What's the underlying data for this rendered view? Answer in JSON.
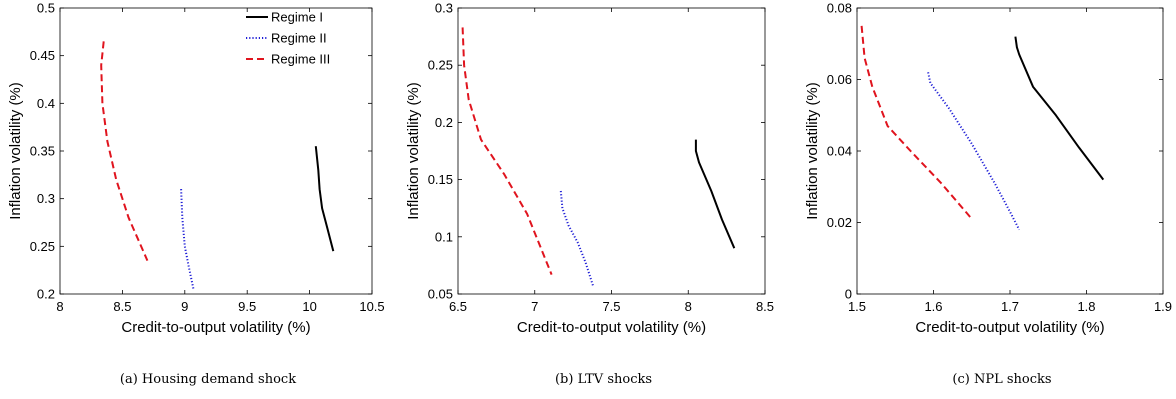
{
  "chart_data": [
    {
      "type": "line",
      "caption": "(a) Housing demand shock",
      "xlabel": "Credit-to-output volatility (%)",
      "ylabel": "Inflation volatility (%)",
      "xlim": [
        8,
        10.5
      ],
      "ylim": [
        0.2,
        0.5
      ],
      "xticks": [
        8,
        8.5,
        9,
        9.5,
        10,
        10.5
      ],
      "yticks": [
        0.2,
        0.25,
        0.3,
        0.35,
        0.4,
        0.45,
        0.5
      ],
      "xtick_labels": [
        "8",
        "8.5",
        "9",
        "9.5",
        "10",
        "10.5"
      ],
      "ytick_labels": [
        "0.2",
        "0.25",
        "0.3",
        "0.35",
        "0.4",
        "0.45",
        "0.5"
      ],
      "legend": {
        "position": "top-right",
        "entries": [
          "Regime I",
          "Regime II",
          "Regime III"
        ]
      },
      "series": [
        {
          "name": "Regime I",
          "color": "#000000",
          "style": "solid",
          "x": [
            10.05,
            10.07,
            10.08,
            10.1,
            10.14,
            10.19
          ],
          "y": [
            0.355,
            0.33,
            0.31,
            0.29,
            0.27,
            0.245
          ]
        },
        {
          "name": "Regime II",
          "color": "#1f1fd6",
          "style": "dotted",
          "x": [
            8.97,
            8.98,
            9.0,
            9.03,
            9.07
          ],
          "y": [
            0.31,
            0.28,
            0.25,
            0.23,
            0.205
          ]
        },
        {
          "name": "Regime III",
          "color": "#e0141e",
          "style": "dashed",
          "x": [
            8.35,
            8.33,
            8.34,
            8.38,
            8.45,
            8.55,
            8.7
          ],
          "y": [
            0.465,
            0.44,
            0.4,
            0.36,
            0.32,
            0.28,
            0.235
          ]
        }
      ]
    },
    {
      "type": "line",
      "caption": "(b) LTV shocks",
      "xlabel": "Credit-to-output volatility (%)",
      "ylabel": "Inflation volatility (%)",
      "xlim": [
        6.5,
        8.5
      ],
      "ylim": [
        0.05,
        0.3
      ],
      "xticks": [
        6.5,
        7,
        7.5,
        8,
        8.5
      ],
      "yticks": [
        0.05,
        0.1,
        0.15,
        0.2,
        0.25,
        0.3
      ],
      "xtick_labels": [
        "6.5",
        "7",
        "7.5",
        "8",
        "8.5"
      ],
      "ytick_labels": [
        "0.05",
        "0.1",
        "0.15",
        "0.2",
        "0.25",
        "0.3"
      ],
      "series": [
        {
          "name": "Regime I",
          "color": "#000000",
          "style": "solid",
          "x": [
            8.05,
            8.05,
            8.07,
            8.15,
            8.22,
            8.3
          ],
          "y": [
            0.185,
            0.175,
            0.165,
            0.14,
            0.115,
            0.09
          ]
        },
        {
          "name": "Regime II",
          "color": "#1f1fd6",
          "style": "dotted",
          "x": [
            7.17,
            7.18,
            7.22,
            7.28,
            7.33,
            7.38
          ],
          "y": [
            0.14,
            0.125,
            0.11,
            0.095,
            0.078,
            0.057
          ]
        },
        {
          "name": "Regime III",
          "color": "#e0141e",
          "style": "dashed",
          "x": [
            6.53,
            6.54,
            6.57,
            6.65,
            6.8,
            6.95,
            7.11
          ],
          "y": [
            0.283,
            0.25,
            0.22,
            0.185,
            0.155,
            0.12,
            0.067
          ]
        }
      ]
    },
    {
      "type": "line",
      "caption": "(c) NPL shocks",
      "xlabel": "Credit-to-output volatility (%)",
      "ylabel": "Inflation volatility (%)",
      "xlim": [
        1.5,
        1.9
      ],
      "ylim": [
        0,
        0.08
      ],
      "xticks": [
        1.5,
        1.6,
        1.7,
        1.8,
        1.9
      ],
      "yticks": [
        0,
        0.02,
        0.04,
        0.06,
        0.08
      ],
      "xtick_labels": [
        "1.5",
        "1.6",
        "1.7",
        "1.8",
        "1.9"
      ],
      "ytick_labels": [
        "0",
        "0.02",
        "0.04",
        "0.06",
        "0.08"
      ],
      "series": [
        {
          "name": "Regime I",
          "color": "#000000",
          "style": "solid",
          "x": [
            1.707,
            1.709,
            1.712,
            1.73,
            1.76,
            1.79,
            1.822
          ],
          "y": [
            0.072,
            0.069,
            0.067,
            0.058,
            0.05,
            0.041,
            0.032
          ]
        },
        {
          "name": "Regime II",
          "color": "#1f1fd6",
          "style": "dotted",
          "x": [
            1.593,
            1.596,
            1.62,
            1.65,
            1.68,
            1.7,
            1.712
          ],
          "y": [
            0.062,
            0.059,
            0.052,
            0.042,
            0.031,
            0.023,
            0.018
          ]
        },
        {
          "name": "Regime III",
          "color": "#e0141e",
          "style": "dashed",
          "x": [
            1.506,
            1.51,
            1.52,
            1.54,
            1.57,
            1.61,
            1.65
          ],
          "y": [
            0.075,
            0.066,
            0.058,
            0.047,
            0.04,
            0.031,
            0.021
          ]
        }
      ]
    }
  ]
}
